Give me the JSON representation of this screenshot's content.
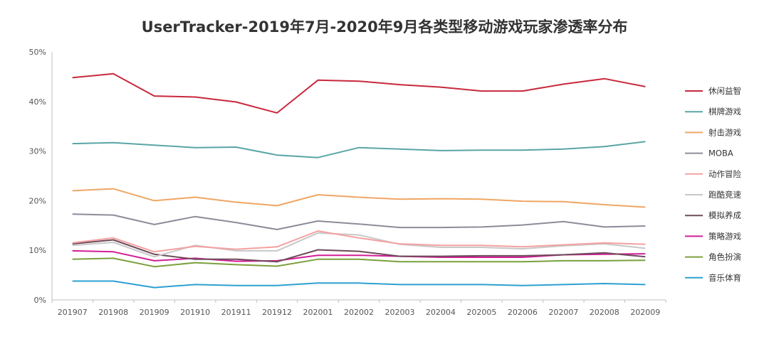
{
  "chart_data": {
    "type": "line",
    "title": "UserTracker-2019年7月-2020年9月各类型移动游戏玩家渗透率分布",
    "xlabel": "",
    "ylabel": "",
    "ylim": [
      0,
      50
    ],
    "y_ticks": [
      "0%",
      "10%",
      "20%",
      "30%",
      "40%",
      "50%"
    ],
    "categories": [
      "201907",
      "201908",
      "201909",
      "201910",
      "201911",
      "201912",
      "202001",
      "202002",
      "202003",
      "202004",
      "202005",
      "202006",
      "202007",
      "202008",
      "202009"
    ],
    "grid": false,
    "legend_position": "right",
    "series": [
      {
        "name": "休闲益智",
        "color": "#c8283c",
        "values": [
          44.8,
          45.6,
          41.1,
          40.9,
          39.9,
          37.7,
          44.3,
          44.1,
          43.4,
          42.9,
          42.1,
          42.1,
          43.5,
          44.6,
          43.0
        ]
      },
      {
        "name": "棋牌游戏",
        "color": "#5aa5a5",
        "values": [
          31.5,
          31.7,
          31.2,
          30.7,
          30.8,
          29.2,
          28.7,
          30.7,
          30.4,
          30.1,
          30.2,
          30.2,
          30.4,
          30.9,
          31.9
        ]
      },
      {
        "name": "射击游戏",
        "color": "#f0a664",
        "values": [
          22.0,
          22.4,
          20.0,
          20.7,
          19.7,
          19.0,
          21.2,
          20.7,
          20.3,
          20.4,
          20.3,
          19.9,
          19.8,
          19.2,
          18.7
        ]
      },
      {
        "name": "MOBA",
        "color": "#8c8c9a",
        "values": [
          17.3,
          17.1,
          15.2,
          16.8,
          15.6,
          14.2,
          15.9,
          15.3,
          14.6,
          14.6,
          14.7,
          15.1,
          15.8,
          14.7,
          14.9
        ]
      },
      {
        "name": "动作冒险",
        "color": "#f5a0a0",
        "values": [
          11.5,
          12.5,
          9.7,
          10.8,
          10.2,
          10.7,
          13.9,
          12.5,
          11.3,
          11.0,
          11.0,
          10.7,
          11.1,
          11.5,
          11.2
        ]
      },
      {
        "name": "跑酷竞速",
        "color": "#c8c8c8",
        "values": [
          11.0,
          11.6,
          8.7,
          11.0,
          9.9,
          9.9,
          13.5,
          13.1,
          11.2,
          10.6,
          10.6,
          10.3,
          10.9,
          11.3,
          10.4
        ]
      },
      {
        "name": "模拟养成",
        "color": "#6e4a5a",
        "values": [
          11.3,
          12.1,
          9.2,
          8.2,
          8.2,
          7.7,
          10.1,
          9.8,
          8.8,
          8.8,
          8.9,
          8.9,
          9.1,
          9.5,
          8.7
        ]
      },
      {
        "name": "策略游戏",
        "color": "#d21e96",
        "values": [
          9.9,
          9.7,
          7.9,
          8.4,
          7.8,
          7.9,
          9.0,
          9.0,
          8.8,
          8.6,
          8.6,
          8.6,
          9.1,
          9.2,
          9.3
        ]
      },
      {
        "name": "角色扮演",
        "color": "#7aa03c",
        "values": [
          8.2,
          8.4,
          6.7,
          7.5,
          7.1,
          6.8,
          8.2,
          8.2,
          7.7,
          7.7,
          7.7,
          7.7,
          7.9,
          7.9,
          8.0
        ]
      },
      {
        "name": "音乐体育",
        "color": "#2da0d2",
        "values": [
          3.8,
          3.8,
          2.5,
          3.1,
          2.9,
          2.9,
          3.4,
          3.4,
          3.1,
          3.1,
          3.1,
          2.9,
          3.1,
          3.3,
          3.1
        ]
      }
    ]
  }
}
